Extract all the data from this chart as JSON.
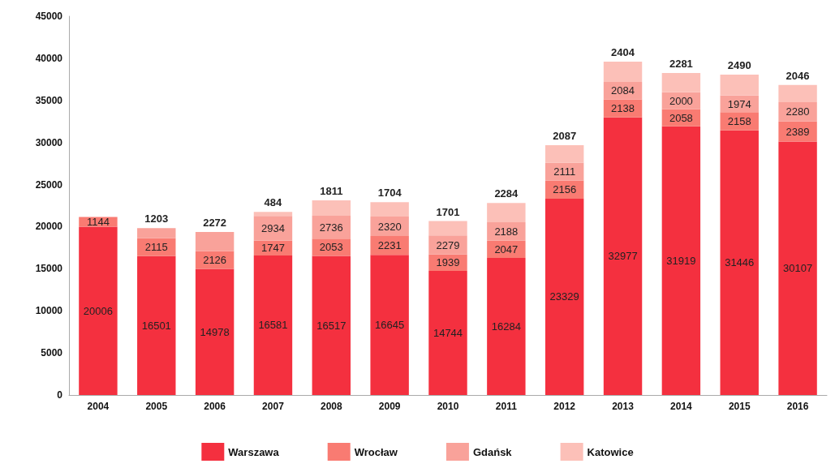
{
  "chart_data": {
    "type": "bar",
    "stacked": true,
    "data_labels": true,
    "grid": false,
    "legend": "bottom",
    "categories": [
      "2004",
      "2005",
      "2006",
      "2007",
      "2008",
      "2009",
      "2010",
      "2011",
      "2012",
      "2013",
      "2014",
      "2015",
      "2016"
    ],
    "ylim": [
      0,
      45000
    ],
    "yticks": [
      0,
      5000,
      10000,
      15000,
      20000,
      25000,
      30000,
      35000,
      40000,
      45000
    ],
    "series": [
      {
        "name": "Warszawa",
        "color": "#f4303f",
        "values": [
          20006,
          16501,
          14978,
          16581,
          16517,
          16645,
          14744,
          16284,
          23329,
          32977,
          31919,
          31446,
          30107
        ]
      },
      {
        "name": "Wrocław",
        "color": "#f97b72",
        "values": [
          1144,
          2115,
          2126,
          1747,
          2053,
          2231,
          1939,
          2047,
          2156,
          2138,
          2058,
          2158,
          2389
        ]
      },
      {
        "name": "Gdańsk",
        "color": "#f9a29a",
        "values": [
          null,
          1203,
          2272,
          2934,
          2736,
          2320,
          2279,
          2188,
          2111,
          2084,
          2000,
          1974,
          2280
        ]
      },
      {
        "name": "Katowice",
        "color": "#fcc0b8",
        "values": [
          null,
          null,
          null,
          484,
          1811,
          1704,
          1701,
          2284,
          2087,
          2404,
          2281,
          2490,
          2046
        ]
      }
    ]
  }
}
